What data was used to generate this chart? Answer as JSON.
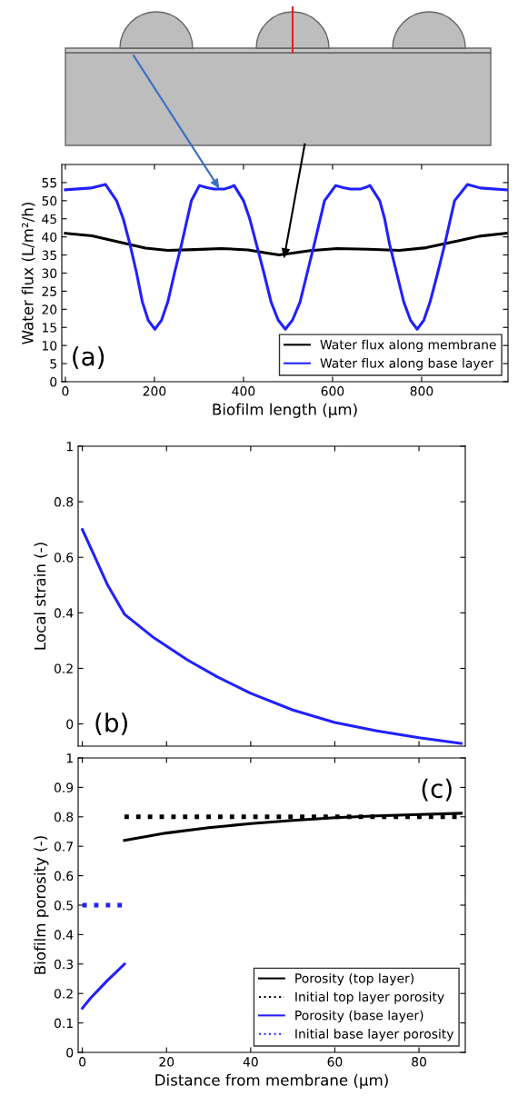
{
  "chart_data": [
    {
      "type": "line",
      "xlabel": "Biofilm length (µm)",
      "ylabel": "Water flux (L/m²/h)",
      "annotations": [
        "(a)"
      ],
      "xlim": [
        -8,
        994
      ],
      "xticks": [
        0,
        200,
        400,
        600,
        800
      ],
      "ylim": [
        0,
        60
      ],
      "yticks": [
        0,
        5,
        10,
        15,
        20,
        25,
        30,
        35,
        40,
        45,
        50,
        55
      ],
      "grid": false,
      "legend": "lower right",
      "marker": "none",
      "series": [
        {
          "name": "Water flux along membrane",
          "color": "#000000",
          "line_style": "solid",
          "x": [
            0,
            60,
            120,
            180,
            230,
            290,
            350,
            410,
            450,
            480,
            510,
            550,
            610,
            680,
            750,
            810,
            870,
            930,
            990
          ],
          "values": [
            41,
            40.3,
            38.6,
            36.9,
            36.3,
            36.5,
            36.8,
            36.4,
            35.6,
            35,
            35.5,
            36.2,
            36.8,
            36.6,
            36.3,
            37,
            38.6,
            40.2,
            41
          ]
        },
        {
          "name": "Water flux along base layer",
          "color": "#2020ff",
          "line_style": "solid",
          "x": [
            0,
            57,
            90,
            115,
            130,
            145,
            160,
            173,
            186,
            201,
            216,
            230,
            245,
            261,
            283,
            301,
            318,
            334,
            356,
            372,
            379,
            400,
            414,
            429,
            446,
            462,
            478,
            494,
            510,
            527,
            543,
            559,
            582,
            607,
            624,
            640,
            662,
            677,
            684,
            706,
            717,
            728,
            744,
            760,
            775,
            790,
            805,
            819,
            836,
            852,
            874,
            903,
            932,
            990
          ],
          "values": [
            53,
            53.5,
            54.5,
            50,
            45,
            38,
            30,
            22,
            17,
            14.5,
            17,
            22,
            30,
            38,
            50,
            54.2,
            53.6,
            53.2,
            53.2,
            53.8,
            54.2,
            50,
            45,
            38,
            30,
            22,
            17,
            14.5,
            17,
            22,
            30,
            38,
            50,
            54.2,
            53.6,
            53.2,
            53.2,
            53.8,
            54.2,
            50,
            45,
            38,
            30,
            22,
            17,
            14.5,
            17,
            22,
            30,
            38,
            50,
            54.5,
            53.5,
            53
          ]
        }
      ]
    },
    {
      "type": "line",
      "ylabel": "Local strain (-)",
      "annotations": [
        "(b)"
      ],
      "xlim": [
        -1,
        91
      ],
      "xticks": [
        0,
        20,
        40,
        60,
        80
      ],
      "ylim": [
        -0.08,
        1
      ],
      "yticks": [
        0,
        0.2,
        0.4,
        0.6,
        0.8,
        1
      ],
      "tick_labels": "y",
      "grid": false,
      "marker": "none",
      "series": [
        {
          "color": "#2020ff",
          "line_style": "solid",
          "x": [
            0,
            3,
            6,
            10,
            17,
            25,
            32,
            40,
            50,
            60,
            70,
            80,
            90
          ],
          "values": [
            0.7,
            0.6,
            0.5,
            0.395,
            0.31,
            0.23,
            0.17,
            0.11,
            0.05,
            0.005,
            -0.025,
            -0.05,
            -0.07
          ]
        }
      ]
    },
    {
      "type": "line",
      "xlabel": "Distance from membrane (µm)",
      "ylabel": "Biofilm porosity (-)",
      "annotations": [
        "(c)"
      ],
      "xlim": [
        -1,
        91
      ],
      "xticks": [
        0,
        20,
        40,
        60,
        80
      ],
      "ylim": [
        0,
        1
      ],
      "yticks": [
        0,
        0.1,
        0.2,
        0.3,
        0.4,
        0.5,
        0.6,
        0.7,
        0.8,
        0.9,
        1
      ],
      "grid": false,
      "legend": "lower right",
      "marker": "none",
      "series": [
        {
          "name": "Porosity (top layer)",
          "color": "#000000",
          "line_style": "solid",
          "x": [
            10,
            20,
            30,
            40,
            50,
            60,
            70,
            80,
            90
          ],
          "values": [
            0.72,
            0.745,
            0.763,
            0.777,
            0.788,
            0.797,
            0.803,
            0.808,
            0.812
          ]
        },
        {
          "name": "Initial top layer porosity",
          "color": "#000000",
          "line_style": "dotted",
          "x": [
            10,
            90
          ],
          "values": [
            0.8,
            0.8
          ]
        },
        {
          "name": "Porosity (base layer)",
          "color": "#2020ff",
          "line_style": "solid",
          "x": [
            0,
            2,
            4,
            6,
            8,
            10
          ],
          "values": [
            0.15,
            0.185,
            0.215,
            0.245,
            0.272,
            0.3
          ]
        },
        {
          "name": "Initial base layer porosity",
          "color": "#2020ff",
          "line_style": "dotted",
          "x": [
            0,
            10
          ],
          "values": [
            0.5,
            0.5
          ]
        }
      ]
    }
  ]
}
